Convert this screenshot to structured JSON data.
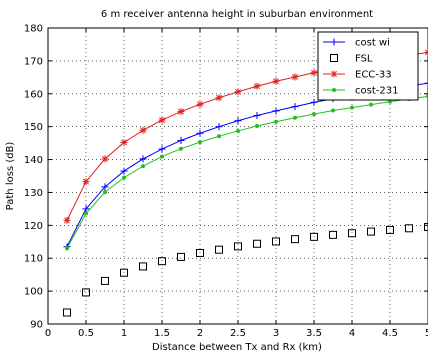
{
  "chart_data": {
    "type": "line",
    "title": "6 m receiver antenna height in suburban environment",
    "xlabel": "Distance between Tx and Rx (km)",
    "ylabel": "Path loss (dB)",
    "xlim": [
      0,
      5
    ],
    "ylim": [
      90,
      180
    ],
    "xticks": [
      0,
      0.5,
      1,
      1.5,
      2,
      2.5,
      3,
      3.5,
      4,
      4.5,
      5
    ],
    "xtick_labels": [
      "0",
      "0.5",
      "1",
      "1.5",
      "2",
      "2.5",
      "3",
      "3.5",
      "4",
      "4.5",
      "5"
    ],
    "yticks": [
      90,
      100,
      110,
      120,
      130,
      140,
      150,
      160,
      170,
      180
    ],
    "ytick_labels": [
      "90",
      "100",
      "110",
      "120",
      "130",
      "140",
      "150",
      "160",
      "170",
      "180"
    ],
    "grid": "dotted",
    "legend_position": "top-right",
    "x": [
      0.25,
      0.5,
      0.75,
      1,
      1.25,
      1.5,
      1.75,
      2,
      2.25,
      2.5,
      2.75,
      3,
      3.25,
      3.5,
      3.75,
      4,
      4.25,
      4.5,
      4.75,
      5
    ],
    "series": [
      {
        "name": "cost wi",
        "color": "#0000ff",
        "marker": "plus",
        "values": [
          113.5,
          125,
          131.7,
          136.5,
          140.2,
          143.2,
          145.8,
          148,
          150,
          151.8,
          153.4,
          154.8,
          156.1,
          157.4,
          158.5,
          159.6,
          160.6,
          161.5,
          162.4,
          163.2
        ]
      },
      {
        "name": "FSL",
        "color": "#000000",
        "marker": "square",
        "values": [
          93.5,
          99.6,
          103.1,
          105.6,
          107.5,
          109.1,
          110.4,
          111.6,
          112.6,
          113.6,
          114.4,
          115.1,
          115.8,
          116.5,
          117.1,
          117.6,
          118.1,
          118.6,
          119.1,
          119.5
        ]
      },
      {
        "name": "ECC-33",
        "color": "#e02020",
        "marker": "asterisk",
        "values": [
          121.5,
          133.3,
          140.2,
          145.2,
          148.9,
          152,
          154.6,
          156.8,
          158.8,
          160.6,
          162.3,
          163.8,
          165.1,
          166.4,
          167.6,
          168.7,
          169.8,
          170.8,
          171.7,
          172.6
        ]
      },
      {
        "name": "cost-231",
        "color": "#20c020",
        "marker": "dot",
        "values": [
          113,
          123.6,
          130.1,
          134.5,
          138,
          140.9,
          143.3,
          145.3,
          147.1,
          148.7,
          150.2,
          151.5,
          152.7,
          153.8,
          154.9,
          155.8,
          156.7,
          157.6,
          158.4,
          159.2
        ]
      }
    ]
  }
}
